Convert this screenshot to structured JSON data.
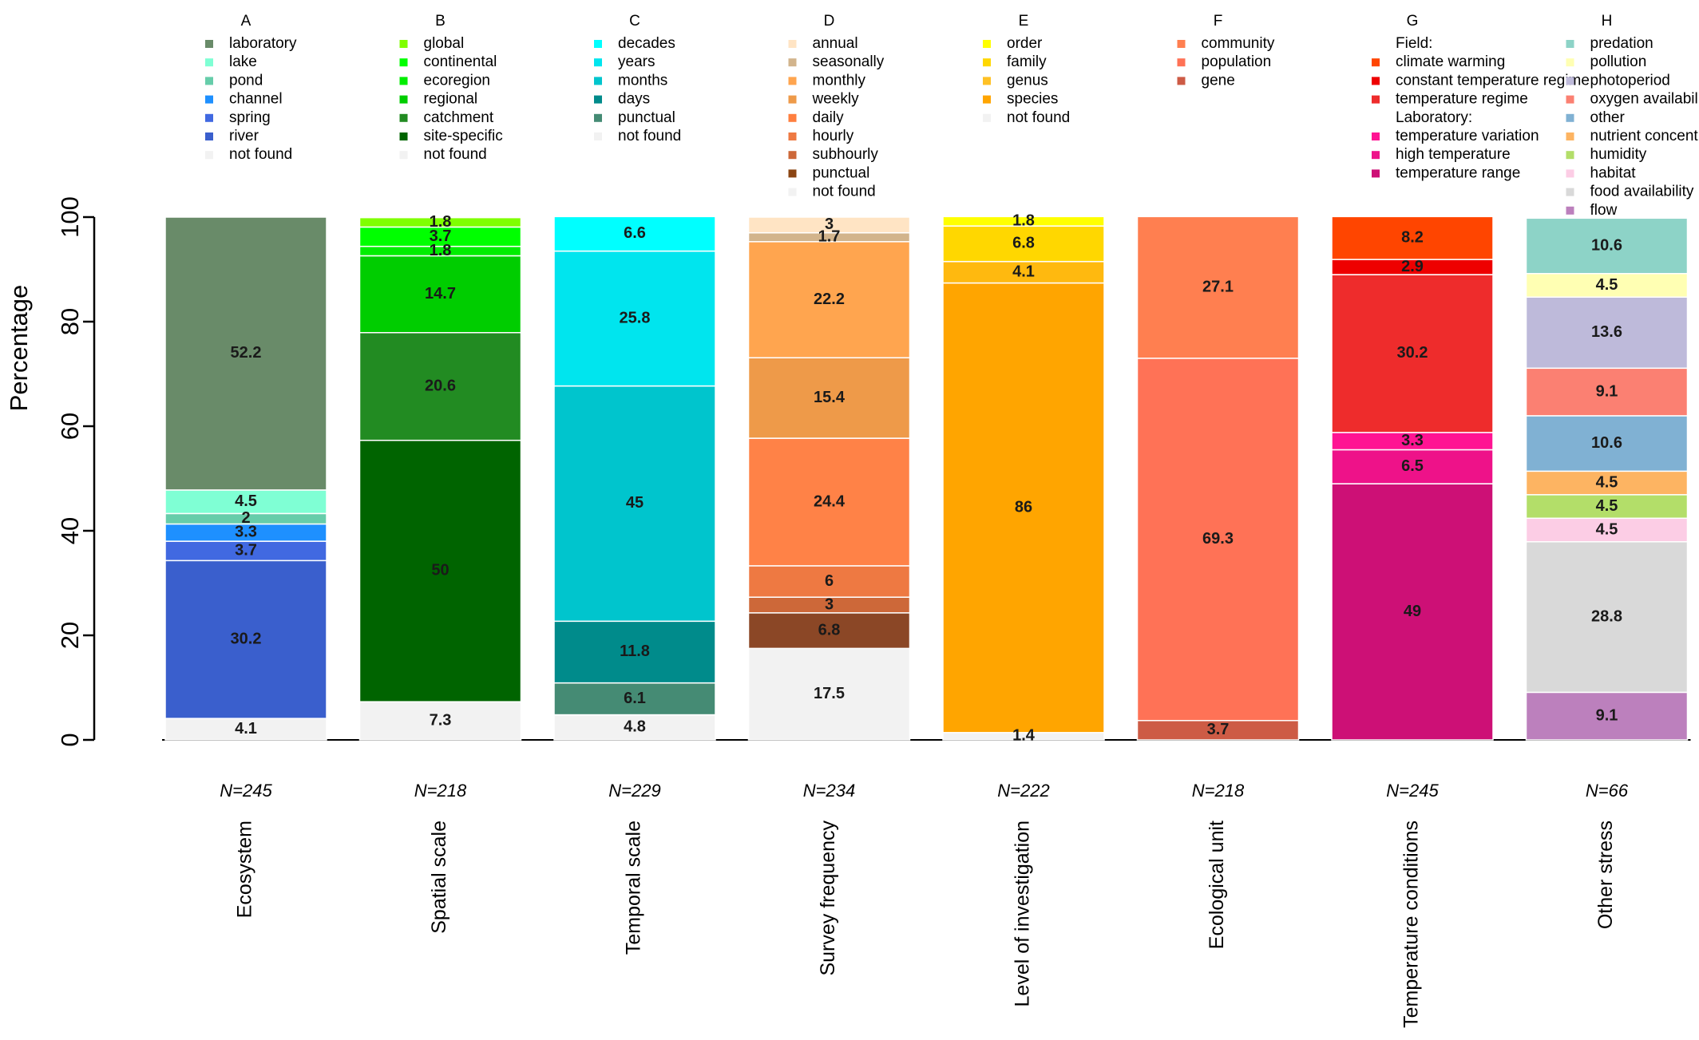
{
  "chart_data": {
    "type": "bar",
    "stacked": true,
    "ylabel": "Percentage",
    "ylim": [
      0,
      100
    ],
    "yticks": [
      0,
      20,
      40,
      60,
      80,
      100
    ],
    "grid": false,
    "legend_placement": "above each bar",
    "groups": [
      {
        "letter": "A",
        "n_label": "N=245",
        "category": "Ecosystem",
        "legend_lines": [
          {
            "text": "laboratory",
            "color": "#698b69"
          },
          {
            "text": "lake",
            "color": "#7fffd4"
          },
          {
            "text": "pond",
            "color": "#66cdaa"
          },
          {
            "text": "channel",
            "color": "#1e90ff"
          },
          {
            "text": "spring",
            "color": "#4169e1"
          },
          {
            "text": "river",
            "color": "#3a5fcd"
          },
          {
            "text": "not found",
            "color": "#f2f2f2"
          }
        ],
        "segments": [
          {
            "name": "not found",
            "value": 4.1,
            "label": "4.1",
            "color": "#f2f2f2"
          },
          {
            "name": "river",
            "value": 30.2,
            "label": "30.2",
            "color": "#3a5fcd"
          },
          {
            "name": "spring",
            "value": 3.7,
            "label": "3.7",
            "color": "#4169e1"
          },
          {
            "name": "channel",
            "value": 3.3,
            "label": "3.3",
            "color": "#1e90ff"
          },
          {
            "name": "pond",
            "value": 2,
            "label": "2",
            "color": "#66cdaa"
          },
          {
            "name": "lake",
            "value": 4.5,
            "label": "4.5",
            "color": "#7fffd4"
          },
          {
            "name": "laboratory",
            "value": 52.2,
            "label": "52.2",
            "color": "#698b69"
          }
        ]
      },
      {
        "letter": "B",
        "n_label": "N=218",
        "category": "Spatial scale",
        "legend_lines": [
          {
            "text": "global",
            "color": "#7fff00"
          },
          {
            "text": "continental",
            "color": "#00ff00"
          },
          {
            "text": "ecoregion",
            "color": "#00ee00"
          },
          {
            "text": "regional",
            "color": "#00cd00"
          },
          {
            "text": "catchment",
            "color": "#228b22"
          },
          {
            "text": "site-specific",
            "color": "#006400"
          },
          {
            "text": "not found",
            "color": "#f2f2f2"
          }
        ],
        "segments": [
          {
            "name": "not found",
            "value": 7.3,
            "label": "7.3",
            "color": "#f2f2f2"
          },
          {
            "name": "site-specific",
            "value": 50,
            "label": "50",
            "color": "#006400"
          },
          {
            "name": "catchment",
            "value": 20.6,
            "label": "20.6",
            "color": "#228b22"
          },
          {
            "name": "regional",
            "value": 14.7,
            "label": "14.7",
            "color": "#00cd00"
          },
          {
            "name": "ecoregion",
            "value": 1.8,
            "label": "1.8",
            "color": "#00ee00"
          },
          {
            "name": "continental",
            "value": 3.7,
            "label": "3.7",
            "color": "#00ff00"
          },
          {
            "name": "global",
            "value": 1.8,
            "label": "1.8",
            "color": "#7fff00"
          }
        ]
      },
      {
        "letter": "C",
        "n_label": "N=229",
        "category": "Temporal scale",
        "legend_lines": [
          {
            "text": "decades",
            "color": "#00ffff"
          },
          {
            "text": "years",
            "color": "#00e5ee"
          },
          {
            "text": "months",
            "color": "#00c5cd"
          },
          {
            "text": "days",
            "color": "#008b8b"
          },
          {
            "text": "punctual",
            "color": "#458b74"
          },
          {
            "text": "not found",
            "color": "#f2f2f2"
          }
        ],
        "segments": [
          {
            "name": "not found",
            "value": 4.8,
            "label": "4.8",
            "color": "#f2f2f2"
          },
          {
            "name": "punctual",
            "value": 6.1,
            "label": "6.1",
            "color": "#458b74"
          },
          {
            "name": "days",
            "value": 11.8,
            "label": "11.8",
            "color": "#008b8b"
          },
          {
            "name": "months",
            "value": 45,
            "label": "45",
            "color": "#00c5cd"
          },
          {
            "name": "years",
            "value": 25.8,
            "label": "25.8",
            "color": "#00e5ee"
          },
          {
            "name": "decades",
            "value": 6.6,
            "label": "6.6",
            "color": "#00ffff"
          }
        ]
      },
      {
        "letter": "D",
        "n_label": "N=234",
        "category": "Survey frequency",
        "legend_lines": [
          {
            "text": "annual",
            "color": "#ffe4c4"
          },
          {
            "text": "seasonally",
            "color": "#d2b48c"
          },
          {
            "text": "monthly",
            "color": "#ffa54f"
          },
          {
            "text": "weekly",
            "color": "#ee9a49"
          },
          {
            "text": "daily",
            "color": "#ff7f3f"
          },
          {
            "text": "hourly",
            "color": "#ee7942"
          },
          {
            "text": "subhourly",
            "color": "#cd6839"
          },
          {
            "text": "punctual",
            "color": "#8b4513"
          },
          {
            "text": "not found",
            "color": "#f2f2f2"
          }
        ],
        "segments": [
          {
            "name": "not found",
            "value": 17.5,
            "label": "17.5",
            "color": "#f2f2f2"
          },
          {
            "name": "punctual",
            "value": 6.8,
            "label": "6.8",
            "color": "#8b4726"
          },
          {
            "name": "subhourly",
            "value": 3,
            "label": "3",
            "color": "#cd6839"
          },
          {
            "name": "hourly",
            "value": 6,
            "label": "6",
            "color": "#ee7942"
          },
          {
            "name": "daily",
            "value": 24.4,
            "label": "24.4",
            "color": "#ff8247"
          },
          {
            "name": "weekly",
            "value": 15.4,
            "label": "15.4",
            "color": "#ee9a49"
          },
          {
            "name": "monthly",
            "value": 22.2,
            "label": "22.2",
            "color": "#ffa54f"
          },
          {
            "name": "seasonally",
            "value": 1.7,
            "label": "1.7",
            "color": "#d2b48c"
          },
          {
            "name": "annual",
            "value": 3,
            "label": "3",
            "color": "#ffe4c4"
          }
        ]
      },
      {
        "letter": "E",
        "n_label": "N=222",
        "category": "Level of investigation",
        "legend_lines": [
          {
            "text": "order",
            "color": "#ffff00"
          },
          {
            "text": "family",
            "color": "#ffd700"
          },
          {
            "text": "genus",
            "color": "#ffc125"
          },
          {
            "text": "species",
            "color": "#ffa500"
          },
          {
            "text": "not found",
            "color": "#f2f2f2"
          }
        ],
        "segments": [
          {
            "name": "not found",
            "value": 1.4,
            "label": "1.4",
            "color": "#f2f2f2"
          },
          {
            "name": "species",
            "value": 86,
            "label": "86",
            "color": "#ffa500"
          },
          {
            "name": "genus",
            "value": 4.1,
            "label": "4.1",
            "color": "#ffb90f"
          },
          {
            "name": "family",
            "value": 6.8,
            "label": "6.8",
            "color": "#ffd700"
          },
          {
            "name": "order",
            "value": 1.8,
            "label": "1.8",
            "color": "#ffff00"
          }
        ]
      },
      {
        "letter": "F",
        "n_label": "N=218",
        "category": "Ecological unit",
        "legend_lines": [
          {
            "text": "community",
            "color": "#ff7f50"
          },
          {
            "text": "population",
            "color": "#ff7256"
          },
          {
            "text": "gene",
            "color": "#cd5b45"
          }
        ],
        "segments": [
          {
            "name": "gene",
            "value": 3.7,
            "label": "3.7",
            "color": "#cd5b45"
          },
          {
            "name": "population",
            "value": 69.3,
            "label": "69.3",
            "color": "#ff7256"
          },
          {
            "name": "community",
            "value": 27.1,
            "label": "27.1",
            "color": "#ff7f50"
          }
        ]
      },
      {
        "letter": "G",
        "n_label": "N=245",
        "category": "Temperature conditions",
        "legend_lines": [
          {
            "text": "Field:",
            "color": ""
          },
          {
            "text": "climate warming",
            "color": "#ff4500"
          },
          {
            "text": "constant temperature regime",
            "color": "#ee0000"
          },
          {
            "text": "temperature regime",
            "color": "#ee2c2c"
          },
          {
            "text": "Laboratory:",
            "color": ""
          },
          {
            "text": "temperature variation",
            "color": "#ff1493"
          },
          {
            "text": "high temperature",
            "color": "#ee1289"
          },
          {
            "text": "temperature range",
            "color": "#cd1076"
          }
        ],
        "segments": [
          {
            "name": "temperature range",
            "value": 49,
            "label": "49",
            "color": "#cd1076"
          },
          {
            "name": "high temperature",
            "value": 6.5,
            "label": "6.5",
            "color": "#ee1289"
          },
          {
            "name": "temperature variation",
            "value": 3.3,
            "label": "3.3",
            "color": "#ff1493"
          },
          {
            "name": "temperature regime",
            "value": 30.2,
            "label": "30.2",
            "color": "#ee2c2c"
          },
          {
            "name": "constant temperature regime",
            "value": 2.9,
            "label": "2.9",
            "color": "#ee0000"
          },
          {
            "name": "climate warming",
            "value": 8.2,
            "label": "8.2",
            "color": "#ff4500"
          }
        ]
      },
      {
        "letter": "H",
        "n_label": "N=66",
        "category": "Other stress",
        "legend_lines": [
          {
            "text": "predation",
            "color": "#8dd3c7"
          },
          {
            "text": "pollution",
            "color": "#ffffb3"
          },
          {
            "text": "photoperiod",
            "color": "#bebada"
          },
          {
            "text": "oxygen availability",
            "color": "#fb8072"
          },
          {
            "text": "other",
            "color": "#80b1d3"
          },
          {
            "text": "nutrient concentration",
            "color": "#fdb462"
          },
          {
            "text": "humidity",
            "color": "#b3de69"
          },
          {
            "text": "habitat",
            "color": "#fccde5"
          },
          {
            "text": "food availability",
            "color": "#d9d9d9"
          },
          {
            "text": "flow",
            "color": "#bc80bd"
          }
        ],
        "segments": [
          {
            "name": "flow",
            "value": 9.1,
            "label": "9.1",
            "color": "#bc80bd"
          },
          {
            "name": "food availability",
            "value": 28.8,
            "label": "28.8",
            "color": "#d9d9d9"
          },
          {
            "name": "habitat",
            "value": 4.5,
            "label": "4.5",
            "color": "#fccde5"
          },
          {
            "name": "humidity",
            "value": 4.5,
            "label": "4.5",
            "color": "#b3de69"
          },
          {
            "name": "nutrient concentration",
            "value": 4.5,
            "label": "4.5",
            "color": "#fdb462"
          },
          {
            "name": "other",
            "value": 10.6,
            "label": "10.6",
            "color": "#80b1d3"
          },
          {
            "name": "oxygen availability",
            "value": 9.1,
            "label": "9.1",
            "color": "#fb8072"
          },
          {
            "name": "photoperiod",
            "value": 13.6,
            "label": "13.6",
            "color": "#bebada"
          },
          {
            "name": "pollution",
            "value": 4.5,
            "label": "4.5",
            "color": "#ffffb3"
          },
          {
            "name": "predation",
            "value": 10.6,
            "label": "10.6",
            "color": "#8dd3c7"
          }
        ]
      }
    ]
  }
}
